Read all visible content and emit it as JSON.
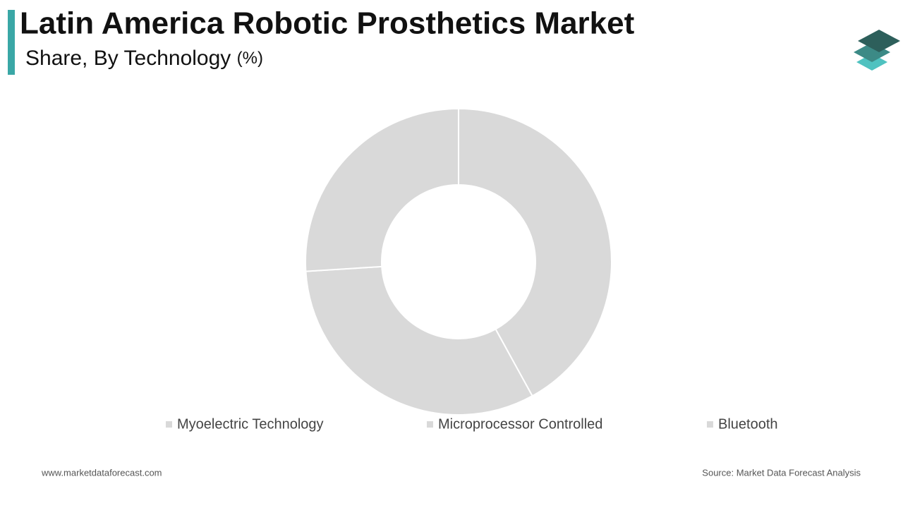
{
  "chart_data": {
    "type": "donut",
    "title": "Latin America Robotic Prosthetics Market",
    "subtitle": "Share, By Technology",
    "unit": "(%)",
    "categories": [
      "Myoelectric Technology",
      "Microprocessor Controlled",
      "Bluetooth"
    ],
    "values": [
      42,
      32,
      26
    ],
    "colors": [
      "#d9d9d9",
      "#d9d9d9",
      "#d9d9d9"
    ],
    "website": "www.marketdataforecast.com",
    "source": "Source: Market Data Forecast Analysis"
  }
}
